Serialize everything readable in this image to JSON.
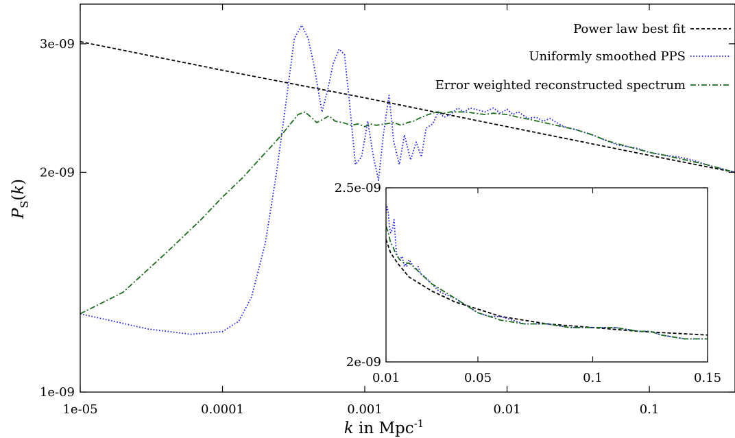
{
  "chart_data": [
    {
      "type": "line",
      "x_scale": "log",
      "y_scale": "log",
      "xlim": [
        1e-05,
        0.4
      ],
      "ylim": [
        1e-09,
        3.4e-09
      ],
      "x_ticks": [
        1e-05,
        0.0001,
        0.001,
        0.01,
        0.1
      ],
      "x_tick_labels": [
        "1e-05",
        "0.0001",
        "0.001",
        "0.01",
        "0.1"
      ],
      "y_ticks": [
        1e-09,
        2e-09,
        3e-09
      ],
      "y_tick_labels": [
        "1e-09",
        "2e-09",
        "3e-09"
      ],
      "xlabel": {
        "italic": "k",
        "rest": " in Mpc",
        "sup": "-1"
      },
      "ylabel": {
        "italic": "P",
        "sub": "S",
        "paren_open": "(",
        "arg": "k",
        "paren_close": ")"
      },
      "legend_position": "top-right",
      "series": [
        {
          "name": "Power law best fit",
          "color": "#000000",
          "dash": "dashed",
          "x": [
            1e-05,
            0.0001,
            0.001,
            0.01,
            0.1,
            0.4
          ],
          "y": [
            3.02e-09,
            2.76e-09,
            2.53e-09,
            2.31e-09,
            2.11e-09,
            2e-09
          ]
        },
        {
          "name": "Uniformly smoothed PPS",
          "color": "#1a1aff",
          "dash": "dotted",
          "x": [
            1e-05,
            3e-05,
            6e-05,
            0.0001,
            0.00013,
            0.00016,
            0.0002,
            0.00024,
            0.00028,
            0.00032,
            0.00036,
            0.0004,
            0.00044,
            0.0005,
            0.00055,
            0.0006,
            0.00066,
            0.00072,
            0.00078,
            0.00086,
            0.00095,
            0.00105,
            0.00115,
            0.00125,
            0.00135,
            0.00148,
            0.0016,
            0.00175,
            0.0019,
            0.0021,
            0.0023,
            0.0025,
            0.0027,
            0.003,
            0.0033,
            0.0036,
            0.004,
            0.0045,
            0.005,
            0.0055,
            0.006,
            0.007,
            0.008,
            0.009,
            0.01,
            0.011,
            0.012,
            0.014,
            0.016,
            0.018,
            0.02,
            0.025,
            0.03,
            0.04,
            0.05,
            0.06,
            0.08,
            0.1,
            0.13,
            0.16,
            0.2,
            0.25,
            0.3,
            0.4
          ],
          "y": [
            1.28e-09,
            1.22e-09,
            1.2e-09,
            1.21e-09,
            1.25e-09,
            1.35e-09,
            1.6e-09,
            2e-09,
            2.5e-09,
            3.05e-09,
            3.18e-09,
            3.05e-09,
            2.8e-09,
            2.42e-09,
            2.6e-09,
            2.82e-09,
            2.95e-09,
            2.9e-09,
            2.5e-09,
            2.05e-09,
            2.1e-09,
            2.35e-09,
            2.1e-09,
            1.95e-09,
            2.25e-09,
            2.55e-09,
            2.2e-09,
            2.05e-09,
            2.25e-09,
            2.08e-09,
            2.2e-09,
            2.1e-09,
            2.3e-09,
            2.33e-09,
            2.42e-09,
            2.38e-09,
            2.4e-09,
            2.45e-09,
            2.42e-09,
            2.45e-09,
            2.44e-09,
            2.42e-09,
            2.45e-09,
            2.41e-09,
            2.44e-09,
            2.4e-09,
            2.42e-09,
            2.37e-09,
            2.38e-09,
            2.35e-09,
            2.37e-09,
            2.31e-09,
            2.29e-09,
            2.25e-09,
            2.21e-09,
            2.18e-09,
            2.16e-09,
            2.13e-09,
            2.11e-09,
            2.1e-09,
            2.08e-09,
            2.05e-09,
            2.03e-09,
            2e-09
          ]
        },
        {
          "name": "Error weighted reconstructed spectrum",
          "color": "#1a6b1a",
          "dash": "dash-dot",
          "x": [
            1e-05,
            2e-05,
            4e-05,
            7e-05,
            0.0001,
            0.00014,
            0.00018,
            0.00022,
            0.00026,
            0.0003,
            0.00034,
            0.00038,
            0.00042,
            0.00046,
            0.0005,
            0.00056,
            0.00062,
            0.0007,
            0.0008,
            0.0009,
            0.001,
            0.0011,
            0.0012,
            0.0014,
            0.0016,
            0.0018,
            0.002,
            0.0022,
            0.0025,
            0.0028,
            0.0032,
            0.0036,
            0.004,
            0.005,
            0.006,
            0.007,
            0.008,
            0.01,
            0.012,
            0.015,
            0.02,
            0.03,
            0.04,
            0.05,
            0.07,
            0.1,
            0.13,
            0.16,
            0.2,
            0.25,
            0.3,
            0.4
          ],
          "y": [
            1.28e-09,
            1.37e-09,
            1.55e-09,
            1.72e-09,
            1.85e-09,
            1.97e-09,
            2.08e-09,
            2.17e-09,
            2.25e-09,
            2.33e-09,
            2.4e-09,
            2.42e-09,
            2.38e-09,
            2.34e-09,
            2.36e-09,
            2.39e-09,
            2.35e-09,
            2.34e-09,
            2.32e-09,
            2.33e-09,
            2.31e-09,
            2.33e-09,
            2.32e-09,
            2.33e-09,
            2.34e-09,
            2.32e-09,
            2.34e-09,
            2.35e-09,
            2.38e-09,
            2.4e-09,
            2.42e-09,
            2.41e-09,
            2.42e-09,
            2.42e-09,
            2.41e-09,
            2.4e-09,
            2.41e-09,
            2.4e-09,
            2.38e-09,
            2.36e-09,
            2.33e-09,
            2.29e-09,
            2.25e-09,
            2.21e-09,
            2.17e-09,
            2.13e-09,
            2.11e-09,
            2.09e-09,
            2.07e-09,
            2.05e-09,
            2.03e-09,
            2e-09
          ]
        }
      ]
    },
    {
      "type": "line",
      "inset": true,
      "x_scale": "linear",
      "y_scale": "log",
      "xlim": [
        0.01,
        0.15
      ],
      "ylim": [
        2e-09,
        2.5e-09
      ],
      "x_ticks": [
        0.01,
        0.05,
        0.1,
        0.15
      ],
      "x_tick_labels": [
        "0.01",
        "0.05",
        "0.1",
        "0.15"
      ],
      "y_ticks": [
        2e-09,
        2.5e-09
      ],
      "y_tick_labels": [
        "2e-09",
        "2.5e-09"
      ],
      "series": [
        {
          "name": "Power law best fit",
          "color": "#000000",
          "dash": "dashed",
          "x": [
            0.01,
            0.012,
            0.015,
            0.02,
            0.03,
            0.04,
            0.05,
            0.06,
            0.08,
            0.1,
            0.12,
            0.15
          ],
          "y": [
            2.34e-09,
            2.3e-09,
            2.27e-09,
            2.23e-09,
            2.19e-09,
            2.16e-09,
            2.14e-09,
            2.12e-09,
            2.1e-09,
            2.09e-09,
            2.08e-09,
            2.07e-09
          ]
        },
        {
          "name": "Uniformly smoothed PPS",
          "color": "#1a1aff",
          "dash": "dotted",
          "x": [
            0.01,
            0.0105,
            0.011,
            0.0115,
            0.012,
            0.0128,
            0.0135,
            0.014,
            0.0145,
            0.015,
            0.016,
            0.017,
            0.018,
            0.0185,
            0.019,
            0.02,
            0.021,
            0.022,
            0.023,
            0.024,
            0.025,
            0.027,
            0.03,
            0.033,
            0.036,
            0.04,
            0.045,
            0.05,
            0.055,
            0.06,
            0.065,
            0.07,
            0.08,
            0.09,
            0.1,
            0.11,
            0.12,
            0.125,
            0.13,
            0.14,
            0.15
          ],
          "y": [
            2.42e-09,
            2.44e-09,
            2.42e-09,
            2.38e-09,
            2.36e-09,
            2.37e-09,
            2.4e-09,
            2.35e-09,
            2.3e-09,
            2.29e-09,
            2.28e-09,
            2.29e-09,
            2.26e-09,
            2.27e-09,
            2.26e-09,
            2.28e-09,
            2.27e-09,
            2.26e-09,
            2.25e-09,
            2.26e-09,
            2.24e-09,
            2.23e-09,
            2.21e-09,
            2.19e-09,
            2.18e-09,
            2.17e-09,
            2.15e-09,
            2.13e-09,
            2.12e-09,
            2.12e-09,
            2.11e-09,
            2.1e-09,
            2.1e-09,
            2.09e-09,
            2.09e-09,
            2.09e-09,
            2.08e-09,
            2.08e-09,
            2.07e-09,
            2.06e-09,
            2.06e-09
          ]
        },
        {
          "name": "Error weighted reconstructed spectrum",
          "color": "#1a6b1a",
          "dash": "dash-dot",
          "x": [
            0.01,
            0.011,
            0.012,
            0.013,
            0.014,
            0.015,
            0.016,
            0.018,
            0.02,
            0.022,
            0.025,
            0.03,
            0.035,
            0.04,
            0.045,
            0.05,
            0.055,
            0.06,
            0.07,
            0.08,
            0.09,
            0.1,
            0.11,
            0.12,
            0.125,
            0.13,
            0.14,
            0.15
          ],
          "y": [
            2.38e-09,
            2.36e-09,
            2.33e-09,
            2.32e-09,
            2.3e-09,
            2.29e-09,
            2.28e-09,
            2.27e-09,
            2.27e-09,
            2.26e-09,
            2.24e-09,
            2.21e-09,
            2.19e-09,
            2.17e-09,
            2.15e-09,
            2.13e-09,
            2.12e-09,
            2.11e-09,
            2.1e-09,
            2.1e-09,
            2.09e-09,
            2.09e-09,
            2.09e-09,
            2.08e-09,
            2.08e-09,
            2.07e-09,
            2.06e-09,
            2.06e-09
          ]
        }
      ]
    }
  ]
}
